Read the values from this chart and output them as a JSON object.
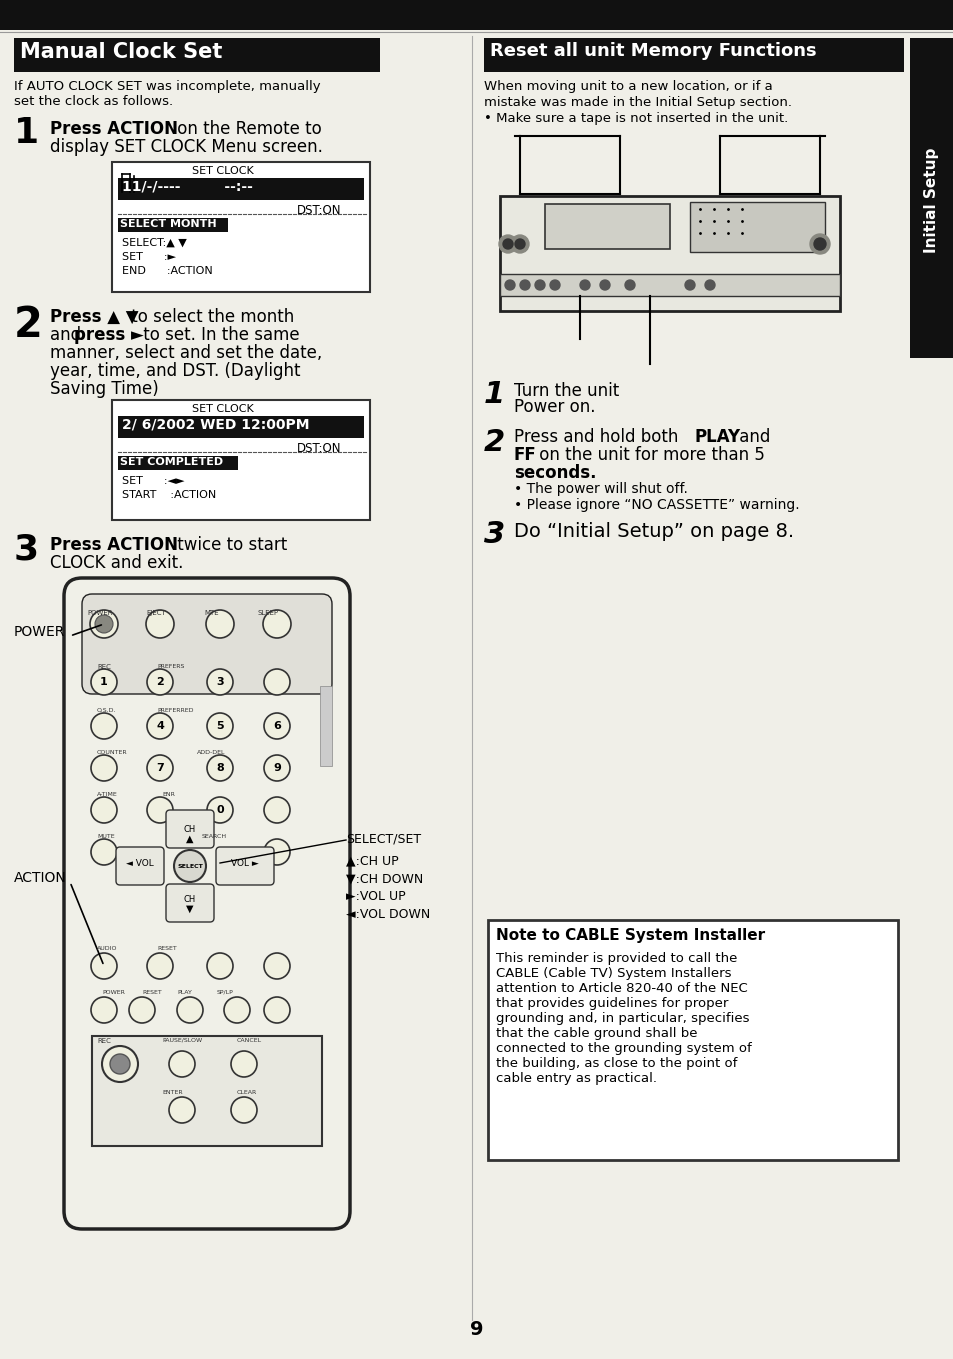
{
  "page_bg": "#f0efe8",
  "top_bar_color": "#111111",
  "header_bg": "#111111",
  "header_text_color": "#ffffff",
  "right_tab_color": "#111111",
  "right_tab_text": "Initial Setup",
  "page_number": "9",
  "left_title": "Manual Clock Set",
  "right_title": "Reset all unit Memory Functions",
  "left_intro": "If AUTO CLOCK SET was incomplete, manually\nset the clock as follows.",
  "right_intro_1": "When moving unit to a new location, or if a",
  "right_intro_2": "mistake was made in the Initial Setup section.",
  "right_intro_3": "• Make sure a tape is not inserted in the unit.",
  "screen1_title": "SET CLOCK",
  "screen1_dst": "DST:ON",
  "screen1_label": "SELECT MONTH",
  "screen1_sel": "SELECT:▲ ▼",
  "screen1_set": "SET      :►",
  "screen1_end": "END      :ACTION",
  "screen2_title": "SET CLOCK",
  "screen2_content": "2/ 6/2002 WED 12:00PM",
  "screen2_dst": "DST:ON",
  "screen2_label": "SET COMPLETED",
  "screen2_set": "SET      :◄►",
  "screen2_start": "START    :ACTION",
  "r1_step1_text": "Turn the unit\nPower on.",
  "r1_step2_line1": "Press and hold both ",
  "r1_step2_bold1": "PLAY",
  "r1_step2_line1b": " and",
  "r1_step2_line2a": "FF",
  "r1_step2_line2b": " on the unit for more than 5",
  "r1_step2_line3": "seconds.",
  "r1_step2_b1": "• The power will shut off.",
  "r1_step2_b2": "• Please ignore “NO CASSETTE” warning.",
  "r1_step3": "Do “Initial Setup” on page 8.",
  "cable_title": "Note to CABLE System Installer",
  "cable_body": "This reminder is provided to call the\nCABLE (Cable TV) System Installers\nattention to Article 820-40 of the NEC\nthat provides guidelines for proper\ngrounding and, in particular, specifies\nthat the cable ground shall be\nconnected to the grounding system of\nthe building, as close to the point of\ncable entry as practical.",
  "lbl_power": "POWER",
  "lbl_action": "ACTION",
  "lbl_selectset": "SELECT/SET",
  "lbl_chup": "▲:CH UP",
  "lbl_chdown": "▼:CH DOWN",
  "lbl_volup": "►:VOL UP",
  "lbl_voldown": "◄:VOL DOWN"
}
